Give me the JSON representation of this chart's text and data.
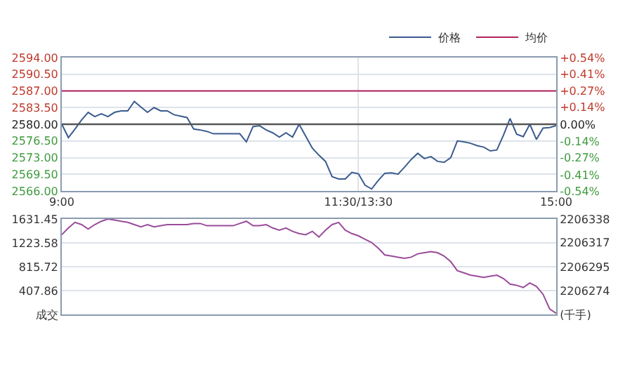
{
  "chart_data": [
    {
      "type": "line",
      "legend": "top right",
      "grid": true,
      "marker": "none",
      "line_style": "solid",
      "categories": [
        "9:00",
        null,
        null,
        null,
        null,
        null,
        null,
        null,
        null,
        null,
        null,
        null,
        null,
        null,
        null,
        null,
        null,
        null,
        null,
        null,
        null,
        null,
        null,
        null,
        null,
        null,
        null,
        null,
        null,
        null,
        null,
        null,
        null,
        null,
        null,
        null,
        null,
        null,
        null,
        null,
        null,
        null,
        null,
        null,
        null,
        "11:30/13:30",
        null,
        null,
        null,
        null,
        null,
        null,
        null,
        null,
        null,
        null,
        null,
        null,
        null,
        null,
        null,
        null,
        null,
        null,
        null,
        null,
        null,
        null,
        null,
        null,
        null,
        null,
        null,
        null,
        null,
        "15:00"
      ],
      "ylim": [
        2566,
        2594
      ],
      "yticks": [
        {
          "value": 2566,
          "label": "2566.00"
        },
        {
          "value": 2569.5,
          "label": "2569.50"
        },
        {
          "value": 2573,
          "label": "2573.00"
        },
        {
          "value": 2576.5,
          "label": "2576.50"
        },
        {
          "value": 2580,
          "label": "2580.00"
        },
        {
          "value": 2583.5,
          "label": "2583.50"
        },
        {
          "value": 2587,
          "label": "2587.00"
        },
        {
          "value": 2590.5,
          "label": "2590.50"
        },
        {
          "value": 2594,
          "label": "2594.00"
        }
      ],
      "y2lim": [
        -0.54,
        0.54
      ],
      "y2ticks": [
        {
          "value": -0.54,
          "label": "-0.54%"
        },
        {
          "value": -0.41,
          "label": "-0.41%"
        },
        {
          "value": -0.27,
          "label": "-0.27%"
        },
        {
          "value": -0.14,
          "label": "-0.14%"
        },
        {
          "value": 0,
          "label": "0.00%"
        },
        {
          "value": 0.14,
          "label": "+0.14%"
        },
        {
          "value": 0.27,
          "label": "+0.27%"
        },
        {
          "value": 0.41,
          "label": "+0.41%"
        },
        {
          "value": 0.54,
          "label": "+0.54%"
        }
      ],
      "ref_lines": [
        {
          "axis": "y",
          "value": 2580,
          "color": "#555555"
        }
      ],
      "series": [
        {
          "name": "价格",
          "color": "#3b5b8f",
          "values": [
            2580,
            2577.2,
            2579,
            2580.9,
            2582.5,
            2581.6,
            2582.2,
            2581.6,
            2582.5,
            2582.8,
            2582.8,
            2584.8,
            2583.6,
            2582.5,
            2583.5,
            2582.8,
            2582.8,
            2582,
            2581.7,
            2581.4,
            2579,
            2578.8,
            2578.5,
            2578,
            2578,
            2578,
            2578,
            2578,
            2576.3,
            2579.5,
            2579.7,
            2578.8,
            2578.2,
            2577.3,
            2578.2,
            2577.3,
            2580,
            2577.5,
            2575,
            2573.5,
            2572.2,
            2569,
            2568.5,
            2568.5,
            2569.9,
            2569.6,
            2567.2,
            2566.4,
            2568.2,
            2569.7,
            2569.8,
            2569.5,
            2571,
            2572.6,
            2573.9,
            2572.8,
            2573.2,
            2572.2,
            2572,
            2573,
            2576.5,
            2576.3,
            2576,
            2575.5,
            2575.2,
            2574.4,
            2574.6,
            2577.7,
            2581.2,
            2577.9,
            2577.4,
            2580,
            2576.8,
            2579.2,
            2579.3,
            2579.7
          ]
        },
        {
          "name": "均价",
          "color": "#b2245e",
          "values": [
            2587,
            2587,
            2587,
            2587,
            2587,
            2587,
            2587,
            2587,
            2587,
            2587,
            2587,
            2587,
            2587,
            2587,
            2587,
            2587,
            2587,
            2587,
            2587,
            2587,
            2587,
            2587,
            2587,
            2587,
            2587,
            2587,
            2587,
            2587,
            2587,
            2587,
            2587,
            2587,
            2587,
            2587,
            2587,
            2587,
            2587,
            2587,
            2587,
            2587,
            2587,
            2587,
            2587,
            2587,
            2587,
            2587,
            2587,
            2587,
            2587,
            2587,
            2587,
            2587,
            2587,
            2587,
            2587,
            2587,
            2587,
            2587,
            2587,
            2587,
            2587,
            2587,
            2587,
            2587,
            2587,
            2587,
            2587,
            2587,
            2587,
            2587,
            2587,
            2587,
            2587,
            2587,
            2587,
            2587
          ]
        }
      ]
    },
    {
      "type": "line",
      "grid": true,
      "marker": "none",
      "line_style": "solid",
      "tick_labels": "y",
      "categories": [
        null,
        null,
        null,
        null,
        null,
        null,
        null,
        null,
        null,
        null,
        null,
        null,
        null,
        null,
        null,
        null,
        null,
        null,
        null,
        null,
        null,
        null,
        null,
        null,
        null,
        null,
        null,
        null,
        null,
        null,
        null,
        null,
        null,
        null,
        null,
        null,
        null,
        null,
        null,
        null,
        null,
        null,
        null,
        null,
        null,
        null,
        null,
        null,
        null,
        null,
        null,
        null,
        null,
        null,
        null,
        null,
        null,
        null,
        null,
        null,
        null,
        null,
        null,
        null,
        null,
        null,
        null,
        null,
        null,
        null,
        null,
        null,
        null,
        null,
        null,
        null
      ],
      "ylim": [
        0,
        1631.45
      ],
      "yticks": [
        {
          "value": 0,
          "label": "成交"
        },
        407.86,
        815.72,
        1223.58,
        1631.45
      ],
      "y2lim": [
        2206253,
        2206338
      ],
      "y2ticks": [
        {
          "value": 2206253,
          "label": "(千手)"
        },
        2206274,
        2206295,
        2206317,
        2206338
      ],
      "series": [
        {
          "axis": "y2",
          "color": "#9a4c9a",
          "values": [
            2206324,
            2206330,
            2206335,
            2206333,
            2206329,
            2206333,
            2206336,
            2206338,
            2206337,
            2206336,
            2206335,
            2206333,
            2206331,
            2206333,
            2206331,
            2206332,
            2206333,
            2206333,
            2206333,
            2206333,
            2206334,
            2206334,
            2206332,
            2206332,
            2206332,
            2206332,
            2206332,
            2206334,
            2206336,
            2206332,
            2206332,
            2206333,
            2206330,
            2206328,
            2206330,
            2206327,
            2206325,
            2206324,
            2206327,
            2206322,
            2206328,
            2206333,
            2206335,
            2206328,
            2206325,
            2206323,
            2206320,
            2206317,
            2206312,
            2206306,
            2206305,
            2206304,
            2206303,
            2206304,
            2206307,
            2206308,
            2206309,
            2206308,
            2206305,
            2206300,
            2206292,
            2206290,
            2206288,
            2206287,
            2206286,
            2206287,
            2206288,
            2206285,
            2206280,
            2206279,
            2206277,
            2206281,
            2206278,
            2206271,
            2206258,
            2206254
          ]
        }
      ]
    }
  ]
}
